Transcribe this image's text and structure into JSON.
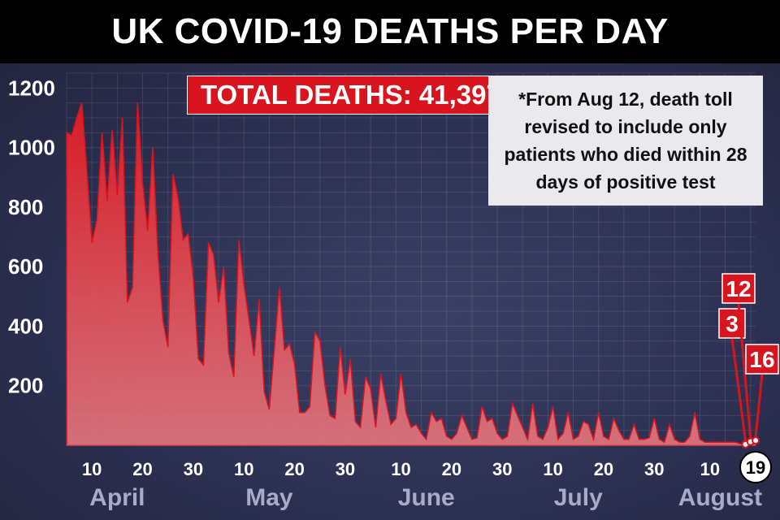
{
  "chart_data": {
    "type": "area",
    "title": "UK COVID-19 DEATHS PER DAY",
    "total_label": "TOTAL DEATHS: 41,397",
    "note": "*From Aug 12, death toll revised to include only patients who died within 28 days of positive test",
    "y_ticks": [
      200,
      400,
      600,
      800,
      1000,
      1200
    ],
    "ylim": [
      0,
      1250
    ],
    "x_start": "2020-04-05",
    "x_end": "2020-08-19",
    "x_ticks": [
      {
        "date": "2020-04-10",
        "label": "10"
      },
      {
        "date": "2020-04-20",
        "label": "20"
      },
      {
        "date": "2020-04-30",
        "label": "30"
      },
      {
        "date": "2020-05-10",
        "label": "10"
      },
      {
        "date": "2020-05-20",
        "label": "20"
      },
      {
        "date": "2020-05-30",
        "label": "30"
      },
      {
        "date": "2020-06-10",
        "label": "10"
      },
      {
        "date": "2020-06-20",
        "label": "20"
      },
      {
        "date": "2020-06-30",
        "label": "30"
      },
      {
        "date": "2020-07-10",
        "label": "10"
      },
      {
        "date": "2020-07-20",
        "label": "20"
      },
      {
        "date": "2020-07-30",
        "label": "30"
      },
      {
        "date": "2020-08-10",
        "label": "10"
      },
      {
        "date": "2020-08-19",
        "label": "19",
        "highlight": true
      }
    ],
    "months": [
      {
        "date": "2020-04-15",
        "label": "April"
      },
      {
        "date": "2020-05-15",
        "label": "May"
      },
      {
        "date": "2020-06-15",
        "label": "June"
      },
      {
        "date": "2020-07-15",
        "label": "July"
      },
      {
        "date": "2020-08-12",
        "label": "August"
      }
    ],
    "series": [
      {
        "color": "#d8151f",
        "points": [
          [
            "2020-04-05",
            1050
          ],
          [
            "2020-04-06",
            1040
          ],
          [
            "2020-04-07",
            1100
          ],
          [
            "2020-04-08",
            1150
          ],
          [
            "2020-04-09",
            920
          ],
          [
            "2020-04-10",
            680
          ],
          [
            "2020-04-11",
            760
          ],
          [
            "2020-04-12",
            1050
          ],
          [
            "2020-04-13",
            820
          ],
          [
            "2020-04-14",
            1060
          ],
          [
            "2020-04-15",
            840
          ],
          [
            "2020-04-16",
            1100
          ],
          [
            "2020-04-17",
            480
          ],
          [
            "2020-04-18",
            530
          ],
          [
            "2020-04-19",
            1150
          ],
          [
            "2020-04-20",
            880
          ],
          [
            "2020-04-21",
            720
          ],
          [
            "2020-04-22",
            1000
          ],
          [
            "2020-04-23",
            650
          ],
          [
            "2020-04-24",
            420
          ],
          [
            "2020-04-25",
            330
          ],
          [
            "2020-04-26",
            910
          ],
          [
            "2020-04-27",
            830
          ],
          [
            "2020-04-28",
            690
          ],
          [
            "2020-04-29",
            710
          ],
          [
            "2020-04-30",
            560
          ],
          [
            "2020-05-01",
            290
          ],
          [
            "2020-05-02",
            270
          ],
          [
            "2020-05-03",
            680
          ],
          [
            "2020-05-04",
            640
          ],
          [
            "2020-05-05",
            480
          ],
          [
            "2020-05-06",
            600
          ],
          [
            "2020-05-07",
            310
          ],
          [
            "2020-05-08",
            230
          ],
          [
            "2020-05-09",
            690
          ],
          [
            "2020-05-10",
            540
          ],
          [
            "2020-05-11",
            420
          ],
          [
            "2020-05-12",
            300
          ],
          [
            "2020-05-13",
            490
          ],
          [
            "2020-05-14",
            180
          ],
          [
            "2020-05-15",
            120
          ],
          [
            "2020-05-16",
            320
          ],
          [
            "2020-05-17",
            530
          ],
          [
            "2020-05-18",
            320
          ],
          [
            "2020-05-19",
            340
          ],
          [
            "2020-05-20",
            270
          ],
          [
            "2020-05-21",
            110
          ],
          [
            "2020-05-22",
            110
          ],
          [
            "2020-05-23",
            130
          ],
          [
            "2020-05-24",
            380
          ],
          [
            "2020-05-25",
            350
          ],
          [
            "2020-05-26",
            200
          ],
          [
            "2020-05-27",
            100
          ],
          [
            "2020-05-28",
            90
          ],
          [
            "2020-05-29",
            330
          ],
          [
            "2020-05-30",
            170
          ],
          [
            "2020-05-31",
            290
          ],
          [
            "2020-06-01",
            80
          ],
          [
            "2020-06-02",
            60
          ],
          [
            "2020-06-03",
            230
          ],
          [
            "2020-06-04",
            190
          ],
          [
            "2020-06-05",
            60
          ],
          [
            "2020-06-06",
            240
          ],
          [
            "2020-06-07",
            150
          ],
          [
            "2020-06-08",
            70
          ],
          [
            "2020-06-09",
            90
          ],
          [
            "2020-06-10",
            240
          ],
          [
            "2020-06-11",
            110
          ],
          [
            "2020-06-12",
            60
          ],
          [
            "2020-06-13",
            70
          ],
          [
            "2020-06-14",
            40
          ],
          [
            "2020-06-15",
            20
          ],
          [
            "2020-06-16",
            110
          ],
          [
            "2020-06-17",
            80
          ],
          [
            "2020-06-18",
            90
          ],
          [
            "2020-06-19",
            30
          ],
          [
            "2020-06-20",
            20
          ],
          [
            "2020-06-21",
            40
          ],
          [
            "2020-06-22",
            100
          ],
          [
            "2020-06-23",
            60
          ],
          [
            "2020-06-24",
            20
          ],
          [
            "2020-06-25",
            25
          ],
          [
            "2020-06-26",
            130
          ],
          [
            "2020-06-27",
            80
          ],
          [
            "2020-06-28",
            90
          ],
          [
            "2020-06-29",
            40
          ],
          [
            "2020-06-30",
            20
          ],
          [
            "2020-07-01",
            30
          ],
          [
            "2020-07-02",
            140
          ],
          [
            "2020-07-03",
            100
          ],
          [
            "2020-07-04",
            60
          ],
          [
            "2020-07-05",
            20
          ],
          [
            "2020-07-06",
            140
          ],
          [
            "2020-07-07",
            30
          ],
          [
            "2020-07-08",
            20
          ],
          [
            "2020-07-09",
            60
          ],
          [
            "2020-07-10",
            130
          ],
          [
            "2020-07-11",
            20
          ],
          [
            "2020-07-12",
            40
          ],
          [
            "2020-07-13",
            110
          ],
          [
            "2020-07-14",
            20
          ],
          [
            "2020-07-15",
            30
          ],
          [
            "2020-07-16",
            80
          ],
          [
            "2020-07-17",
            70
          ],
          [
            "2020-07-18",
            20
          ],
          [
            "2020-07-19",
            110
          ],
          [
            "2020-07-20",
            30
          ],
          [
            "2020-07-21",
            20
          ],
          [
            "2020-07-22",
            90
          ],
          [
            "2020-07-23",
            50
          ],
          [
            "2020-07-24",
            20
          ],
          [
            "2020-07-25",
            20
          ],
          [
            "2020-07-26",
            70
          ],
          [
            "2020-07-27",
            20
          ],
          [
            "2020-07-28",
            20
          ],
          [
            "2020-07-29",
            25
          ],
          [
            "2020-07-30",
            90
          ],
          [
            "2020-07-31",
            20
          ],
          [
            "2020-08-01",
            10
          ],
          [
            "2020-08-02",
            70
          ],
          [
            "2020-08-03",
            20
          ],
          [
            "2020-08-04",
            10
          ],
          [
            "2020-08-05",
            10
          ],
          [
            "2020-08-06",
            30
          ],
          [
            "2020-08-07",
            110
          ],
          [
            "2020-08-08",
            20
          ],
          [
            "2020-08-09",
            10
          ],
          [
            "2020-08-10",
            10
          ],
          [
            "2020-08-11",
            10
          ],
          [
            "2020-08-12",
            10
          ],
          [
            "2020-08-13",
            10
          ],
          [
            "2020-08-14",
            10
          ],
          [
            "2020-08-15",
            10
          ],
          [
            "2020-08-16",
            5
          ],
          [
            "2020-08-17",
            3
          ],
          [
            "2020-08-18",
            12
          ],
          [
            "2020-08-19",
            16
          ]
        ]
      }
    ],
    "callouts": [
      {
        "date": "2020-08-17",
        "value": 3,
        "label": "3"
      },
      {
        "date": "2020-08-18",
        "value": 12,
        "label": "12"
      },
      {
        "date": "2020-08-19",
        "value": 16,
        "label": "16"
      }
    ],
    "grid": true
  }
}
